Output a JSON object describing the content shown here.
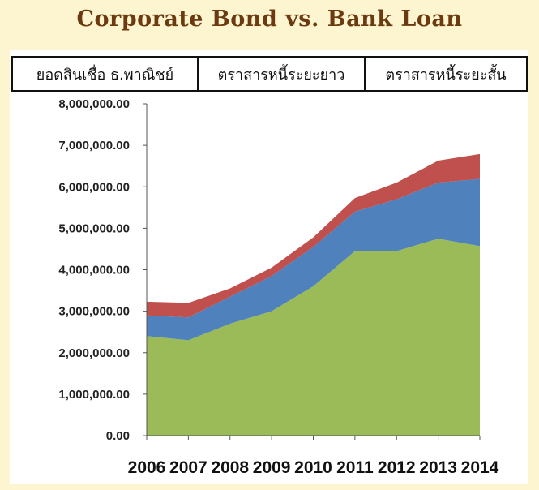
{
  "chart_data": {
    "type": "area",
    "stacked": true,
    "title": "Corporate Bond vs. Bank Loan",
    "x": [
      2006,
      2007,
      2008,
      2009,
      2010,
      2011,
      2012,
      2013,
      2014
    ],
    "x_tick_labels": [
      "2006",
      "2007",
      "2008",
      "2009",
      "2010",
      "2011",
      "2012",
      "2013",
      "2014"
    ],
    "ylim": [
      0,
      8000000
    ],
    "y_tick_labels": [
      "0.00",
      "1,000,000.00",
      "2,000,000.00",
      "3,000,000.00",
      "4,000,000.00",
      "5,000,000.00",
      "6,000,000.00",
      "7,000,000.00",
      "8,000,000.00"
    ],
    "y_ticks": [
      0,
      1000000,
      2000000,
      3000000,
      4000000,
      5000000,
      6000000,
      7000000,
      8000000
    ],
    "grid": false,
    "legend_position": "top",
    "series": [
      {
        "name": "ยอดสินเชื่อ ธ.พาณิชย์",
        "color": "#9bbb59",
        "values": [
          2400000,
          2300000,
          2700000,
          3000000,
          3600000,
          4450000,
          4450000,
          4750000,
          4570000
        ]
      },
      {
        "name": "ตราสารหนี้ระยะยาว",
        "color": "#4f81bd",
        "values": [
          500000,
          550000,
          650000,
          850000,
          950000,
          950000,
          1250000,
          1350000,
          1620000
        ]
      },
      {
        "name": "ตราสารหนี้ระยะสั้น",
        "color": "#c0504d",
        "values": [
          330000,
          350000,
          200000,
          200000,
          230000,
          330000,
          400000,
          530000,
          600000
        ]
      }
    ]
  }
}
